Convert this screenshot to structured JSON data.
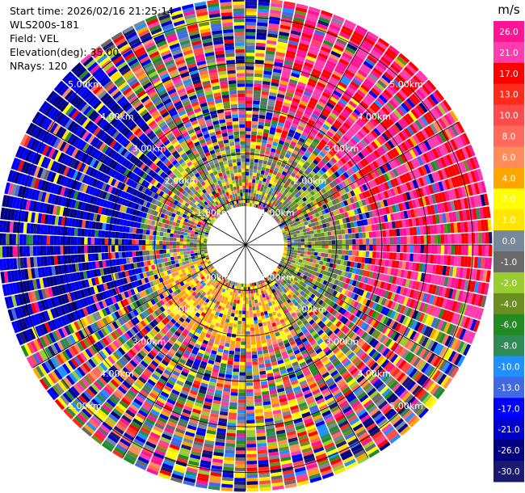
{
  "header": {
    "start_time": "Start time: 2026/02/16 21:25:14",
    "site": "WLS200s-181",
    "field": "Field: VEL",
    "elevation": "Elevation(deg): 35.00",
    "nrays": "NRays: 120"
  },
  "chart_data": {
    "type": "heatmap",
    "projection": "polar-ppi",
    "field": "VEL",
    "n_rays": 120,
    "max_range_km": 5.4,
    "range_rings_km": [
      1.0,
      2.0,
      3.0,
      4.0,
      5.0
    ],
    "range_ring_labels": [
      "1.00km",
      "2.00km",
      "3.00km",
      "4.00km",
      "5.00km"
    ],
    "spoke_interval_deg": 30,
    "colorbar": {
      "unit": "m/s",
      "tick_labels": [
        "26.0",
        "21.0",
        "17.0",
        "13.0",
        "10.0",
        "8.0",
        "6.0",
        "4.0",
        "2.0",
        "1.0",
        "0.0",
        "-1.0",
        "-2.0",
        "-4.0",
        "-6.0",
        "-8.0",
        "-10.0",
        "-13.0",
        "-17.0",
        "-21.0",
        "-26.0",
        "-30.0"
      ],
      "colors": [
        "#ff1493",
        "#ff3cac",
        "#ff0000",
        "#ff2a1a",
        "#ff4a4a",
        "#ff6a5a",
        "#ff8c5a",
        "#ffa500",
        "#ffff00",
        "#ffe600",
        "#778899",
        "#696969",
        "#9acd32",
        "#6b8e23",
        "#228b22",
        "#2e8b57",
        "#1e90ff",
        "#4169e1",
        "#0000ff",
        "#0000cd",
        "#000080",
        "#191970"
      ],
      "range": [
        -30.0,
        30.0
      ]
    },
    "structure_summary": {
      "inner_gate_km": 0.85,
      "dominant_sectors": [
        {
          "azimuth_deg_from": 10,
          "azimuth_deg_to": 110,
          "range_km_from": 2.8,
          "range_km_to": 5.4,
          "approx_velocity_ms": 21.0
        },
        {
          "azimuth_deg_from": 245,
          "azimuth_deg_to": 320,
          "range_km_from": 2.2,
          "range_km_to": 5.4,
          "approx_velocity_ms": -21.0
        },
        {
          "azimuth_deg_from": 150,
          "azimuth_deg_to": 250,
          "range_km_from": 0.9,
          "range_km_to": 2.2,
          "approx_velocity_ms": 3.0
        },
        {
          "azimuth_deg_from": 30,
          "azimuth_deg_to": 130,
          "range_km_from": 0.9,
          "range_km_to": 2.2,
          "approx_velocity_ms": -3.0
        }
      ]
    }
  }
}
